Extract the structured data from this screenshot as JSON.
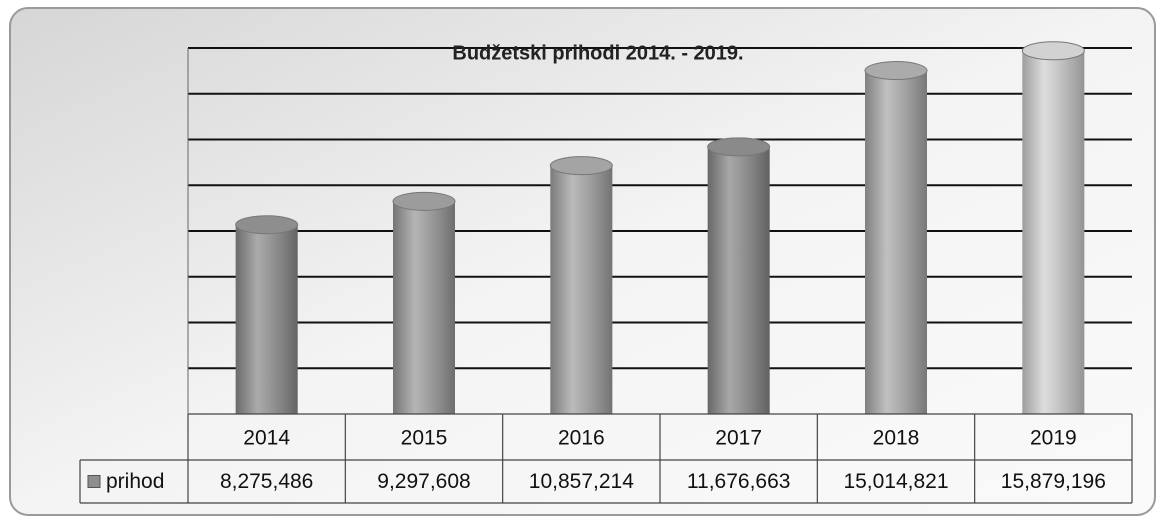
{
  "chart_data": {
    "type": "bar3d",
    "title": "Budžetski prihodi 2014. - 2019.",
    "categories": [
      "2014",
      "2015",
      "2016",
      "2017",
      "2018",
      "2019"
    ],
    "series": [
      {
        "name": "prihod",
        "colors": [
          "#8e8e8e",
          "#9c9c9c",
          "#a4a4a4",
          "#8a8a8a",
          "#ababab",
          "#d2d2d2"
        ],
        "values": [
          8275486,
          9297608,
          10857214,
          11676663,
          15014821,
          15879196
        ],
        "value_labels": [
          "8,275,486",
          "9,297,608",
          "10,857,214",
          "11,676,663",
          "15,014,821",
          "15,879,196"
        ]
      }
    ],
    "ylim": [
      0,
      16000000
    ],
    "gridlines": [
      2000000,
      4000000,
      6000000,
      8000000,
      10000000,
      12000000,
      14000000,
      16000000
    ],
    "data_table": true
  }
}
